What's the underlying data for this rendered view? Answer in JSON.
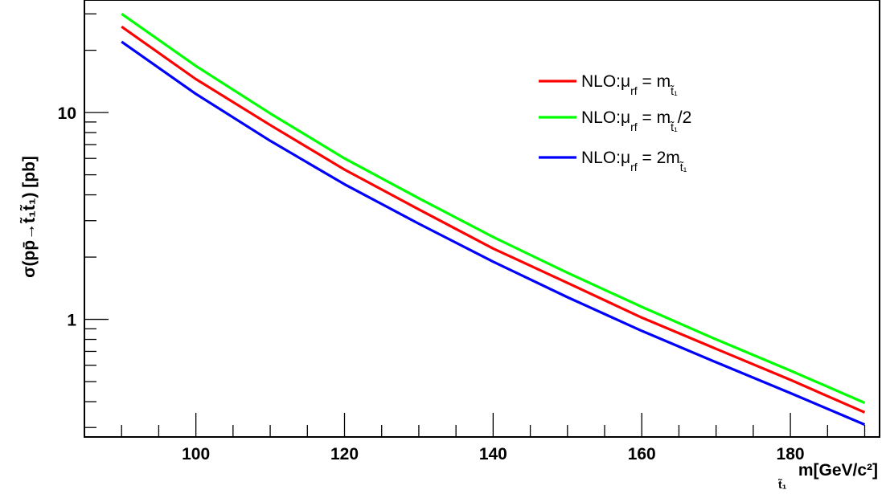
{
  "chart_data": {
    "type": "line",
    "xlabel": "m[GeV/c²]",
    "xlabel_sub": "t̃₁",
    "ylabel": "σ(pp̄→t̃₁t̃₁) [pb]",
    "xlim": [
      85,
      192
    ],
    "ylim": [
      0.27,
      35
    ],
    "yscale": "log",
    "grid": false,
    "legend_position": "top-right",
    "x_ticks": [
      100,
      120,
      140,
      160,
      180
    ],
    "y_ticks": [
      1,
      10
    ],
    "series": [
      {
        "name": "NLO:μ_rf = m_t̃₁",
        "legend": {
          "prefix": "NLO:μ",
          "sub1": "rf",
          "mid": " = m",
          "sub2": "t̃₁",
          "suffix": ""
        },
        "color": "#ff0000",
        "x": [
          90,
          100,
          110,
          120,
          130,
          140,
          150,
          160,
          170,
          180,
          190
        ],
        "y": [
          26,
          14.5,
          8.7,
          5.3,
          3.4,
          2.2,
          1.5,
          1.02,
          0.72,
          0.51,
          0.355
        ]
      },
      {
        "name": "NLO:μ_rf = m_t̃₁/2",
        "legend": {
          "prefix": "NLO:μ",
          "sub1": "rf",
          "mid": " = m",
          "sub2": "t̃₁",
          "suffix": "/2"
        },
        "color": "#00ff00",
        "x": [
          90,
          100,
          110,
          120,
          130,
          140,
          150,
          160,
          170,
          180,
          190
        ],
        "y": [
          30,
          16.8,
          9.9,
          6.0,
          3.85,
          2.5,
          1.68,
          1.15,
          0.8,
          0.565,
          0.395
        ]
      },
      {
        "name": "NLO:μ_rf = 2m_t̃₁",
        "legend": {
          "prefix": "NLO:μ",
          "sub1": "rf",
          "mid": " = 2m",
          "sub2": "t̃₁",
          "suffix": ""
        },
        "color": "#0000ff",
        "x": [
          90,
          100,
          110,
          120,
          130,
          140,
          150,
          160,
          170,
          180,
          190
        ],
        "y": [
          22,
          12.3,
          7.3,
          4.5,
          2.9,
          1.9,
          1.28,
          0.88,
          0.62,
          0.44,
          0.31
        ]
      }
    ]
  }
}
